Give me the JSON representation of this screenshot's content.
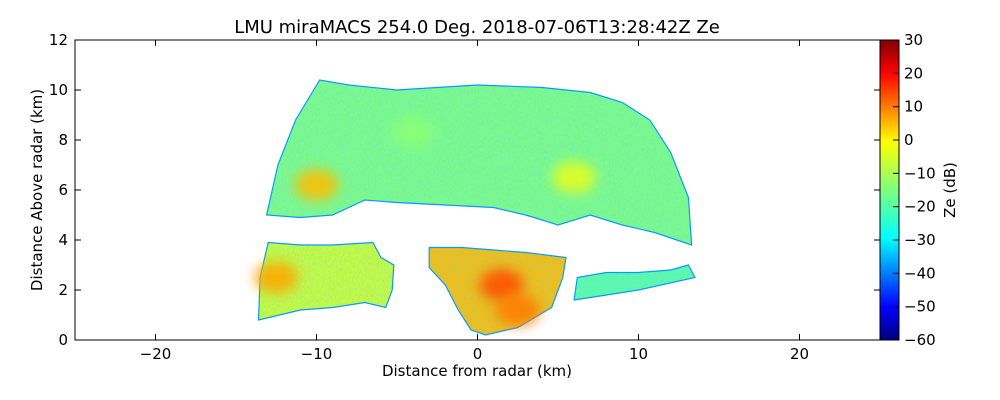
{
  "chart_data": {
    "type": "heatmap",
    "title": "LMU miraMACS 254.0 Deg. 2018-07-06T13:28:42Z  Ze",
    "xlabel": "Distance from radar (km)",
    "ylabel": "Distance Above radar  (km)",
    "xlim": [
      -25,
      25
    ],
    "ylim": [
      0,
      12
    ],
    "x_ticks": [
      -20,
      -10,
      0,
      10,
      20
    ],
    "y_ticks": [
      0,
      2,
      4,
      6,
      8,
      10,
      12
    ],
    "colorbar": {
      "label": "Ze (dB)",
      "range": [
        -60,
        30
      ],
      "ticks": [
        30,
        20,
        10,
        0,
        -10,
        -20,
        -30,
        -40,
        -50,
        -60
      ],
      "colormap": "jet"
    },
    "scan_elevation_deg": 254.0,
    "echo_regions": [
      {
        "name": "upper-cloud-layer",
        "typical_ze_db": -15,
        "outline": [
          [
            -13.1,
            5.0
          ],
          [
            -12.4,
            7.0
          ],
          [
            -11.3,
            8.8
          ],
          [
            -9.8,
            10.4
          ],
          [
            -8,
            10.2
          ],
          [
            -5,
            10.0
          ],
          [
            0,
            10.2
          ],
          [
            4,
            10.1
          ],
          [
            7,
            9.9
          ],
          [
            9,
            9.5
          ],
          [
            10.7,
            8.8
          ],
          [
            12.0,
            7.5
          ],
          [
            13.1,
            5.7
          ],
          [
            13.3,
            3.8
          ],
          [
            11,
            4.3
          ],
          [
            9,
            4.6
          ],
          [
            7,
            5.0
          ],
          [
            5,
            4.6
          ],
          [
            3,
            5.0
          ],
          [
            1,
            5.3
          ],
          [
            -2,
            5.4
          ],
          [
            -5,
            5.5
          ],
          [
            -7,
            5.6
          ],
          [
            -9,
            5.0
          ],
          [
            -11,
            4.9
          ],
          [
            -13.1,
            5.0
          ]
        ]
      },
      {
        "name": "lower-left-cell",
        "typical_ze_db": -8,
        "outline": [
          [
            -13.6,
            0.8
          ],
          [
            -13.5,
            2.5
          ],
          [
            -13.0,
            3.9
          ],
          [
            -11,
            3.8
          ],
          [
            -9,
            3.8
          ],
          [
            -6.5,
            3.9
          ],
          [
            -6,
            3.3
          ],
          [
            -5.2,
            3.0
          ],
          [
            -5.3,
            2.0
          ],
          [
            -5.7,
            1.3
          ],
          [
            -7,
            1.5
          ],
          [
            -9,
            1.3
          ],
          [
            -11,
            1.2
          ],
          [
            -13.6,
            0.8
          ]
        ]
      },
      {
        "name": "center-convective-cell",
        "typical_ze_db": 2,
        "outline": [
          [
            -3,
            3.7
          ],
          [
            -1,
            3.7
          ],
          [
            1,
            3.6
          ],
          [
            3,
            3.5
          ],
          [
            5.5,
            3.3
          ],
          [
            5.3,
            2.5
          ],
          [
            4.6,
            1.3
          ],
          [
            2.5,
            0.5
          ],
          [
            0.5,
            0.2
          ],
          [
            -0.4,
            0.4
          ],
          [
            -1.2,
            1.2
          ],
          [
            -2,
            2.2
          ],
          [
            -3,
            2.9
          ],
          [
            -3,
            3.7
          ]
        ]
      },
      {
        "name": "right-low-band",
        "typical_ze_db": -18,
        "outline": [
          [
            6,
            1.6
          ],
          [
            6.2,
            2.5
          ],
          [
            8,
            2.7
          ],
          [
            10,
            2.7
          ],
          [
            12,
            2.8
          ],
          [
            13.1,
            3.0
          ],
          [
            13.5,
            2.5
          ],
          [
            10,
            2.0
          ],
          [
            8,
            1.8
          ],
          [
            6,
            1.6
          ]
        ]
      }
    ],
    "hotspots": [
      {
        "x": -10.0,
        "y": 6.2,
        "ze_db": 2
      },
      {
        "x": -12.5,
        "y": 2.5,
        "ze_db": 4
      },
      {
        "x": 1.5,
        "y": 2.2,
        "ze_db": 12
      },
      {
        "x": 2.5,
        "y": 1.2,
        "ze_db": 8
      },
      {
        "x": -4.0,
        "y": 8.3,
        "ze_db": -14
      },
      {
        "x": 6.0,
        "y": 6.5,
        "ze_db": -6
      }
    ]
  }
}
